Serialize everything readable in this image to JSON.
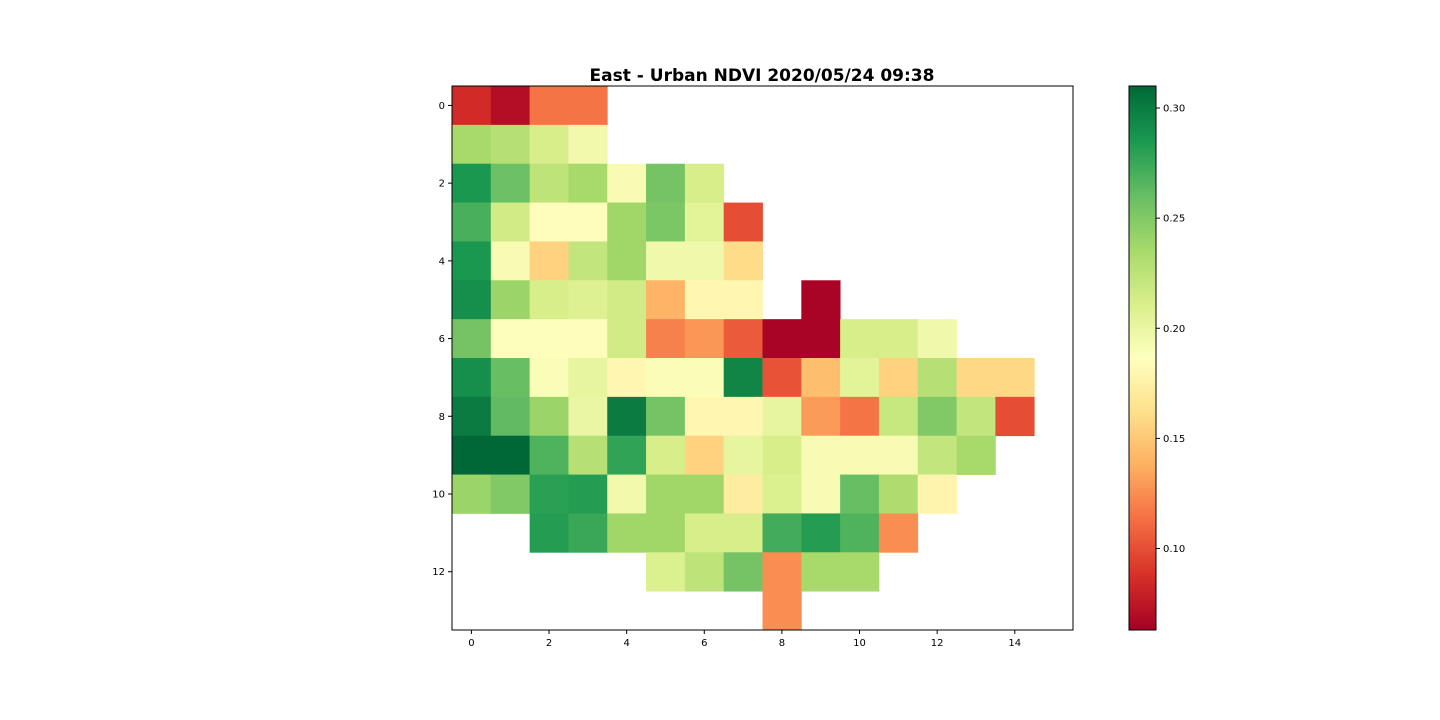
{
  "chart_data": {
    "type": "heatmap",
    "title": "East - Urban NDVI 2020/05/24 09:38",
    "xlabel": "",
    "ylabel": "",
    "cmap": "RdYlGn",
    "xlim": [
      -0.5,
      15.5
    ],
    "ylim": [
      13.5,
      -0.5
    ],
    "x_ticks": [
      0,
      2,
      4,
      6,
      8,
      10,
      12,
      14
    ],
    "y_ticks": [
      0,
      2,
      4,
      6,
      8,
      10,
      12
    ],
    "colorbar": {
      "vmin": 0.063,
      "vmax": 0.31,
      "ticks": [
        0.1,
        0.15,
        0.2,
        0.25,
        0.3
      ],
      "tick_labels": [
        "0.10",
        "0.15",
        "0.20",
        "0.25",
        "0.30"
      ]
    },
    "grid": false,
    "values": [
      [
        0.085,
        0.07,
        0.115,
        0.115,
        null,
        null,
        null,
        null,
        null,
        null,
        null,
        null,
        null,
        null,
        null,
        null
      ],
      [
        0.235,
        0.228,
        0.212,
        0.195,
        null,
        null,
        null,
        null,
        null,
        null,
        null,
        null,
        null,
        null,
        null,
        null
      ],
      [
        0.285,
        0.258,
        0.225,
        0.235,
        0.192,
        0.255,
        0.212,
        null,
        null,
        null,
        null,
        null,
        null,
        null,
        null,
        null
      ],
      [
        0.27,
        0.215,
        0.185,
        0.185,
        0.238,
        0.252,
        0.205,
        0.1,
        null,
        null,
        null,
        null,
        null,
        null,
        null,
        null
      ],
      [
        0.285,
        0.192,
        0.155,
        0.222,
        0.238,
        0.196,
        0.196,
        0.16,
        null,
        null,
        null,
        null,
        null,
        null,
        null,
        null
      ],
      [
        0.29,
        0.24,
        0.212,
        0.208,
        0.215,
        0.14,
        0.18,
        0.18,
        null,
        0.065,
        null,
        null,
        null,
        null,
        null,
        null
      ],
      [
        0.255,
        0.188,
        0.188,
        0.185,
        0.215,
        0.12,
        0.128,
        0.105,
        0.065,
        0.065,
        0.212,
        0.212,
        0.196,
        null,
        null,
        null
      ],
      [
        0.29,
        0.26,
        0.19,
        0.202,
        0.18,
        0.19,
        0.19,
        0.295,
        0.102,
        0.145,
        0.205,
        0.155,
        0.228,
        0.158,
        0.158,
        null
      ],
      [
        0.3,
        0.262,
        0.24,
        0.2,
        0.3,
        0.255,
        0.18,
        0.18,
        0.202,
        0.13,
        0.115,
        0.22,
        0.25,
        0.222,
        0.1,
        null
      ],
      [
        0.31,
        0.31,
        0.268,
        0.228,
        0.278,
        0.212,
        0.155,
        0.202,
        0.212,
        0.192,
        0.192,
        0.192,
        0.222,
        0.235,
        null,
        null
      ],
      [
        0.24,
        0.25,
        0.28,
        0.282,
        0.195,
        0.238,
        0.238,
        0.172,
        0.21,
        0.192,
        0.26,
        0.232,
        0.178,
        null,
        null,
        null
      ],
      [
        null,
        null,
        0.282,
        0.275,
        0.238,
        0.238,
        0.212,
        0.212,
        0.272,
        0.282,
        0.268,
        0.125,
        null,
        null,
        null,
        null
      ],
      [
        null,
        null,
        null,
        null,
        null,
        0.21,
        0.225,
        0.255,
        0.125,
        0.235,
        0.235,
        null,
        null,
        null,
        null,
        null
      ],
      [
        null,
        null,
        null,
        null,
        null,
        null,
        null,
        null,
        0.125,
        null,
        null,
        null,
        null,
        null,
        null,
        null
      ]
    ]
  }
}
